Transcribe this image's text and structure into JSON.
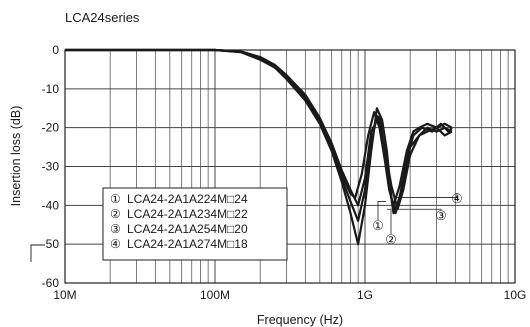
{
  "chart_data": {
    "type": "line",
    "title": "LCA24series",
    "xlabel": "Frequency (Hz)",
    "ylabel": "Insertion loss (dB)",
    "xscale": "log",
    "xlim": [
      10000000,
      10000000000
    ],
    "ylim": [
      -60,
      0
    ],
    "grid": true,
    "x_ticks": [
      {
        "value": 10000000,
        "label": "10M"
      },
      {
        "value": 100000000,
        "label": "100M"
      },
      {
        "value": 1000000000,
        "label": "1G"
      },
      {
        "value": 10000000000,
        "label": "10G"
      }
    ],
    "y_ticks": [
      {
        "value": 0,
        "label": "0"
      },
      {
        "value": -10,
        "label": "-10"
      },
      {
        "value": -20,
        "label": "-20"
      },
      {
        "value": -30,
        "label": "-30"
      },
      {
        "value": -40,
        "label": "-40"
      },
      {
        "value": -50,
        "label": "-50"
      },
      {
        "value": -60,
        "label": "-60"
      }
    ],
    "legend": {
      "placement": "bottom-left",
      "entries": [
        {
          "marker": "①",
          "label": "LCA24-2A1A224M□24"
        },
        {
          "marker": "②",
          "label": "LCA24-2A1A234M□22"
        },
        {
          "marker": "③",
          "label": "LCA24-2A1A254M□20"
        },
        {
          "marker": "④",
          "label": "LCA24-2A1A274M□18"
        }
      ]
    },
    "series": [
      {
        "marker": "①",
        "x": [
          10000000,
          100000000,
          150000000,
          200000000,
          250000000,
          300000000,
          400000000,
          500000000,
          600000000,
          700000000,
          800000000,
          860000000,
          950000000,
          1050000000,
          1150000000,
          1250000000,
          1350000000,
          1450000000,
          1550000000,
          1700000000,
          1900000000,
          2100000000,
          2300000000,
          2600000000,
          3000000000,
          3400000000,
          3800000000
        ],
        "y": [
          0,
          0,
          -0.5,
          -2,
          -4,
          -7,
          -12,
          -18,
          -25,
          -32,
          -37,
          -38,
          -32,
          -22,
          -16,
          -20,
          -28,
          -36,
          -40,
          -35,
          -26,
          -21,
          -20,
          -19,
          -20,
          -19,
          -20
        ]
      },
      {
        "marker": "②",
        "x": [
          10000000,
          100000000,
          150000000,
          200000000,
          250000000,
          300000000,
          400000000,
          500000000,
          600000000,
          700000000,
          800000000,
          900000000,
          1000000000,
          1100000000,
          1200000000,
          1300000000,
          1400000000,
          1500000000,
          1600000000,
          1800000000,
          2000000000,
          2300000000,
          2600000000,
          3000000000,
          3400000000,
          3800000000
        ],
        "y": [
          0,
          0,
          -0.6,
          -2.5,
          -4.5,
          -7.5,
          -13,
          -19,
          -26,
          -34,
          -42,
          -50,
          -40,
          -26,
          -15,
          -18,
          -26,
          -38,
          -42,
          -34,
          -25,
          -22,
          -20,
          -21,
          -20,
          -21
        ]
      },
      {
        "marker": "③",
        "x": [
          10000000,
          100000000,
          150000000,
          200000000,
          250000000,
          300000000,
          400000000,
          500000000,
          600000000,
          700000000,
          800000000,
          900000000,
          1000000000,
          1100000000,
          1200000000,
          1350000000,
          1500000000,
          1650000000,
          1800000000,
          2000000000,
          2300000000,
          2600000000,
          3000000000,
          3400000000,
          3800000000
        ],
        "y": [
          0,
          0,
          -0.5,
          -2.2,
          -4.2,
          -7.2,
          -12.5,
          -18.5,
          -25.5,
          -33,
          -39,
          -44,
          -36,
          -24,
          -17,
          -25,
          -35,
          -41,
          -36,
          -27,
          -22,
          -21,
          -20,
          -22,
          -21
        ]
      },
      {
        "marker": "④",
        "x": [
          10000000,
          100000000,
          150000000,
          200000000,
          250000000,
          300000000,
          400000000,
          500000000,
          600000000,
          700000000,
          800000000,
          900000000,
          1000000000,
          1100000000,
          1250000000,
          1400000000,
          1550000000,
          1700000000,
          1900000000,
          2100000000,
          2400000000,
          2800000000,
          3200000000,
          3600000000,
          3800000000
        ],
        "y": [
          0,
          0,
          -0.4,
          -1.8,
          -3.8,
          -6.5,
          -11.5,
          -17.5,
          -24,
          -31,
          -36,
          -40,
          -33,
          -21,
          -17,
          -30,
          -42,
          -38,
          -28,
          -22,
          -20,
          -21,
          -19,
          -21,
          -20
        ]
      }
    ],
    "callouts": [
      "①",
      "②",
      "③",
      "④"
    ]
  }
}
